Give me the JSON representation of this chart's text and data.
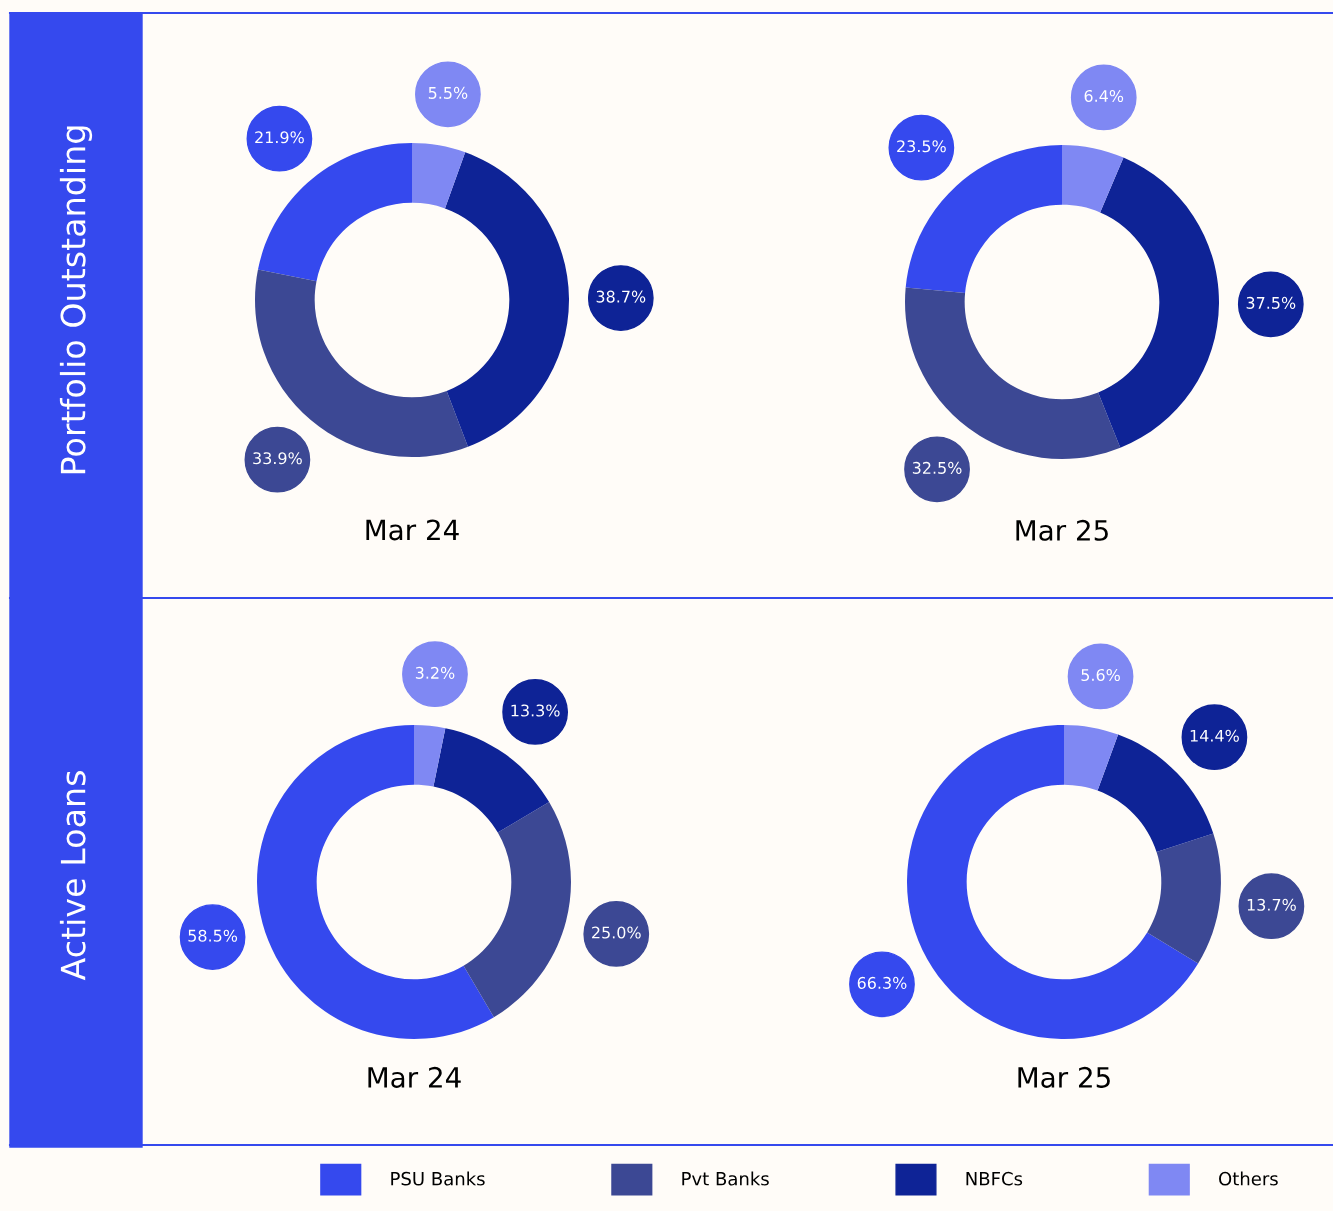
{
  "chart_data": [
    {
      "type": "donut",
      "title": "Mar 24",
      "ylabel": "Portfolio Outstanding",
      "categories": [
        "PSU Banks",
        "Pvt Banks",
        "NBFCs",
        "Others"
      ],
      "values": [
        21.9,
        33.9,
        38.7,
        5.5
      ],
      "value_labels": [
        "21.9%",
        "33.9%",
        "38.7%",
        "5.5%"
      ],
      "colors": [
        "#3549ee",
        "#3c4894",
        "#0e2396",
        "#7f88f3"
      ],
      "legend": "bottom"
    },
    {
      "type": "donut",
      "title": "Mar 25",
      "categories": [
        null,
        null,
        null,
        null
      ],
      "values": [
        23.5,
        32.5,
        37.5,
        6.4
      ],
      "value_labels": [
        "23.5%",
        "32.5%",
        "37.5%",
        "6.4%"
      ],
      "colors": [
        "#3549ee",
        "#3c4894",
        "#0e2396",
        "#7f88f3"
      ]
    },
    {
      "type": "donut",
      "title": "Mar 24",
      "ylabel": "Active Loans",
      "categories": [
        null,
        null,
        null,
        null
      ],
      "values": [
        58.5,
        25.0,
        13.3,
        3.2
      ],
      "value_labels": [
        "58.5%",
        "25.0%",
        "13.3%",
        "3.2%"
      ],
      "colors": [
        "#3549ee",
        "#3c4894",
        "#0e2396",
        "#7f88f3"
      ]
    },
    {
      "type": "donut",
      "title": "Mar 25",
      "categories": [
        null,
        null,
        null,
        null
      ],
      "values": [
        66.3,
        13.7,
        14.4,
        5.6
      ],
      "value_labels": [
        "66.3%",
        "13.7%",
        "14.4%",
        "5.6%"
      ],
      "colors": [
        "#3549ee",
        "#3c4894",
        "#0e2396",
        "#7f88f3"
      ]
    }
  ]
}
